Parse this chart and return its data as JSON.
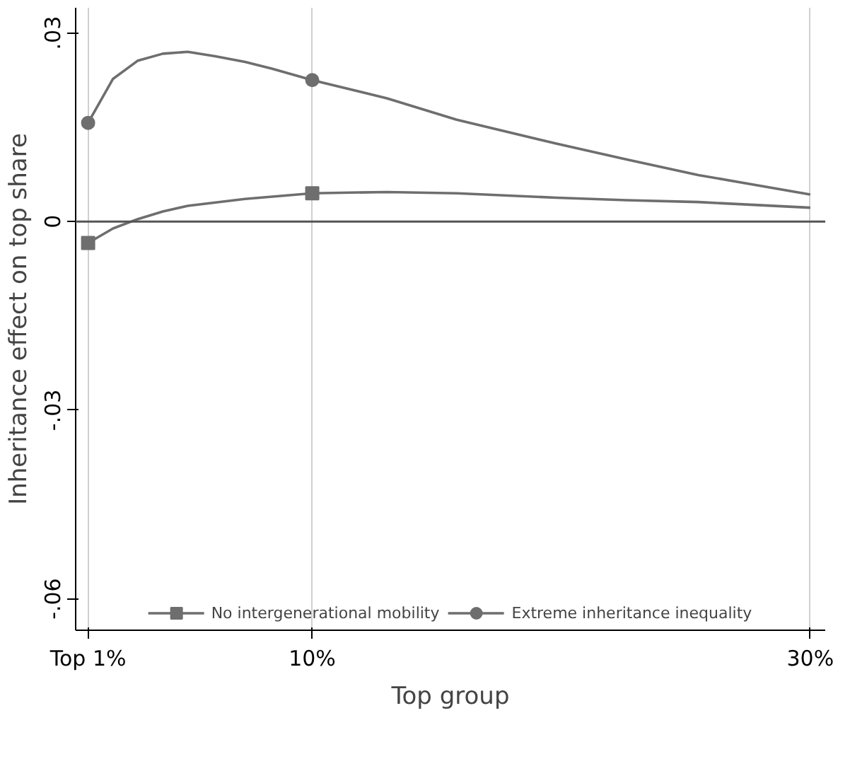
{
  "chart_data": {
    "type": "line",
    "xlabel": "Top group",
    "ylabel": "Inheritance effect on top share",
    "xlim": [
      0.5,
      30.6
    ],
    "ylim": [
      -0.065,
      0.034
    ],
    "xticks": [
      {
        "value": 1,
        "label": "Top 1%"
      },
      {
        "value": 10,
        "label": "10%"
      },
      {
        "value": 30,
        "label": "30%"
      }
    ],
    "yticks": [
      {
        "value": 0.03,
        "label": ".03"
      },
      {
        "value": 0,
        "label": "0"
      },
      {
        "value": -0.03,
        "label": "-.03"
      },
      {
        "value": -0.06,
        "label": "-.06"
      }
    ],
    "grid": "x",
    "legend": "bottom",
    "ref_lines": [
      {
        "axis": "y",
        "value": 0,
        "color": "#555555"
      }
    ],
    "series": [
      {
        "name": "No intergenerational mobility",
        "color": "#6e6e6e",
        "x": [
          1,
          2,
          3,
          4,
          5,
          7.3,
          10,
          13,
          15.8,
          19.8,
          22.6,
          25.5,
          30
        ],
        "values": [
          -0.0034,
          -0.0011,
          0.0004,
          0.0016,
          0.0025,
          0.0036,
          0.0045,
          0.0047,
          0.0045,
          0.0038,
          0.0034,
          0.0031,
          0.0022
        ]
      },
      {
        "color": "#6e6e6e",
        "type": "scatter",
        "marker": "square",
        "x": [
          1,
          10
        ],
        "values": [
          -0.0034,
          0.0045
        ]
      },
      {
        "name": "Extreme inheritance inequality",
        "color": "#6e6e6e",
        "x": [
          1,
          2,
          3,
          4,
          5,
          6.1,
          7.3,
          8.4,
          10,
          13,
          15.8,
          19.8,
          22.6,
          25.5,
          30
        ],
        "values": [
          0.0157,
          0.0227,
          0.0256,
          0.0267,
          0.027,
          0.0263,
          0.0254,
          0.0243,
          0.0225,
          0.0196,
          0.0162,
          0.0124,
          0.0099,
          0.0074,
          0.0043
        ]
      },
      {
        "color": "#6e6e6e",
        "type": "scatter",
        "marker": "circle",
        "x": [
          1,
          10
        ],
        "values": [
          0.0157,
          0.0225
        ]
      }
    ]
  }
}
